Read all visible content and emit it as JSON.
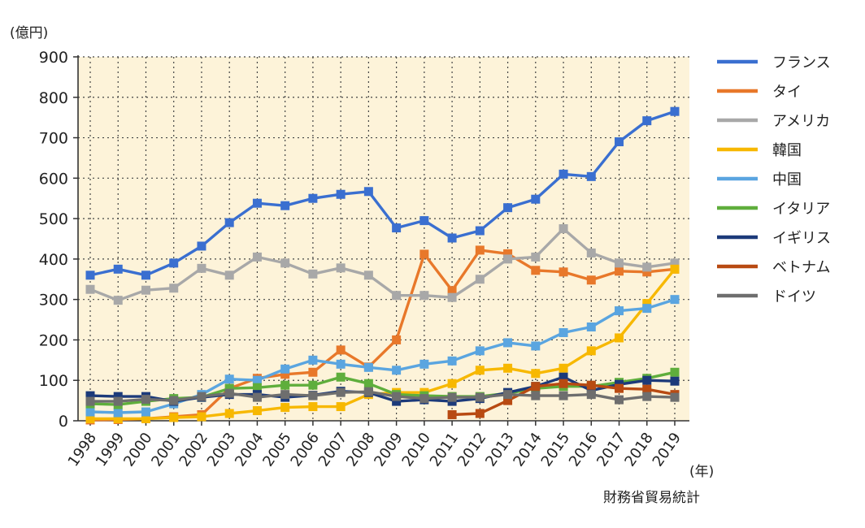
{
  "chart_data": {
    "type": "line",
    "y_unit_label": "(億円)",
    "x_unit_label": "(年)",
    "source": "財務省貿易統計",
    "ylim": [
      0,
      900
    ],
    "yticks": [
      0,
      100,
      200,
      300,
      400,
      500,
      600,
      700,
      800,
      900
    ],
    "categories": [
      "1998",
      "1999",
      "2000",
      "2001",
      "2002",
      "2003",
      "2004",
      "2005",
      "2006",
      "2007",
      "2008",
      "2009",
      "2010",
      "2011",
      "2012",
      "2013",
      "2014",
      "2015",
      "2016",
      "2017",
      "2018",
      "2019"
    ],
    "legend_position": "right",
    "series": [
      {
        "name": "フランス",
        "color": "#3a6fd0",
        "values": [
          360,
          375,
          360,
          390,
          432,
          490,
          538,
          532,
          550,
          560,
          567,
          477,
          495,
          452,
          470,
          527,
          548,
          610,
          604,
          690,
          742,
          765
        ]
      },
      {
        "name": "タイ",
        "color": "#e8782a",
        "values": [
          2,
          3,
          5,
          10,
          15,
          80,
          105,
          115,
          120,
          175,
          133,
          200,
          412,
          322,
          422,
          413,
          372,
          368,
          348,
          370,
          368,
          375
        ]
      },
      {
        "name": "アメリカ",
        "color": "#a8a8a8",
        "values": [
          325,
          298,
          323,
          328,
          377,
          360,
          405,
          390,
          363,
          378,
          360,
          310,
          310,
          305,
          350,
          400,
          405,
          475,
          415,
          390,
          380,
          390
        ]
      },
      {
        "name": "韓国",
        "color": "#f7b800",
        "values": [
          5,
          5,
          5,
          8,
          10,
          18,
          25,
          33,
          35,
          35,
          65,
          70,
          70,
          92,
          125,
          130,
          117,
          130,
          173,
          205,
          290,
          375
        ]
      },
      {
        "name": "中国",
        "color": "#5aa5e0",
        "values": [
          22,
          20,
          22,
          42,
          65,
          103,
          100,
          128,
          150,
          140,
          132,
          125,
          140,
          148,
          173,
          193,
          185,
          218,
          232,
          272,
          278,
          300
        ]
      },
      {
        "name": "イタリア",
        "color": "#5fae3c",
        "values": [
          42,
          40,
          48,
          55,
          58,
          80,
          82,
          88,
          88,
          108,
          92,
          65,
          62,
          60,
          60,
          68,
          80,
          85,
          85,
          95,
          105,
          120
        ]
      },
      {
        "name": "イギリス",
        "color": "#1c3a7a",
        "values": [
          62,
          60,
          60,
          48,
          58,
          65,
          65,
          58,
          63,
          73,
          70,
          48,
          52,
          48,
          55,
          70,
          85,
          108,
          75,
          90,
          100,
          98
        ]
      },
      {
        "name": "ベトナム",
        "color": "#b84a12",
        "values": [
          null,
          null,
          null,
          null,
          null,
          null,
          null,
          null,
          null,
          null,
          null,
          null,
          null,
          15,
          18,
          50,
          85,
          92,
          88,
          80,
          78,
          65
        ]
      },
      {
        "name": "ドイツ",
        "color": "#6e6e6e",
        "values": [
          48,
          48,
          53,
          50,
          60,
          68,
          58,
          65,
          62,
          70,
          72,
          60,
          55,
          58,
          58,
          65,
          62,
          62,
          65,
          52,
          60,
          58
        ]
      }
    ]
  }
}
